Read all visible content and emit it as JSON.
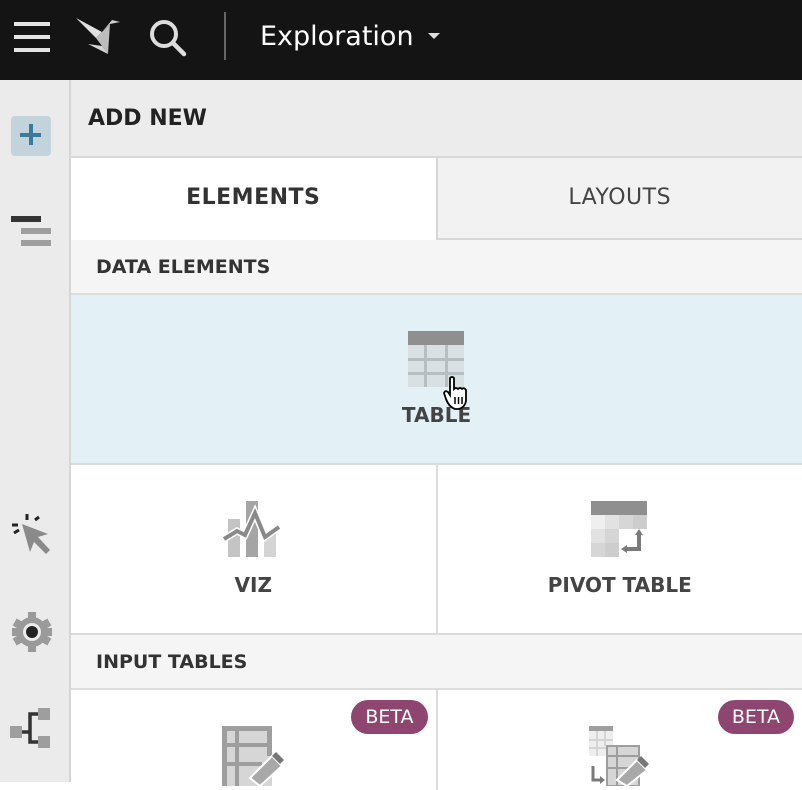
{
  "topbar": {
    "title": "Exploration",
    "icons": [
      "menu-icon",
      "logo-icon",
      "search-icon",
      "caret-down-icon"
    ]
  },
  "sidebar": {
    "icons": [
      "plus-icon",
      "outline-icon",
      "cursor-click-icon",
      "gear-icon",
      "hierarchy-icon"
    ]
  },
  "panel": {
    "header": "ADD NEW",
    "tabs": [
      {
        "label": "ELEMENTS",
        "active": true
      },
      {
        "label": "LAYOUTS",
        "active": false
      }
    ],
    "sections": [
      {
        "title": "DATA ELEMENTS",
        "items": [
          {
            "label": "TABLE",
            "hovered": true
          },
          {
            "label": "VIZ"
          },
          {
            "label": "PIVOT TABLE"
          }
        ]
      },
      {
        "title": "INPUT TABLES",
        "items": [
          {
            "badge": "BETA"
          },
          {
            "badge": "BETA"
          }
        ]
      }
    ]
  },
  "colors": {
    "topbar": "#141414",
    "accent": "#3b7a9a",
    "hover": "#e3f1f7",
    "badge": "#8e4570"
  }
}
